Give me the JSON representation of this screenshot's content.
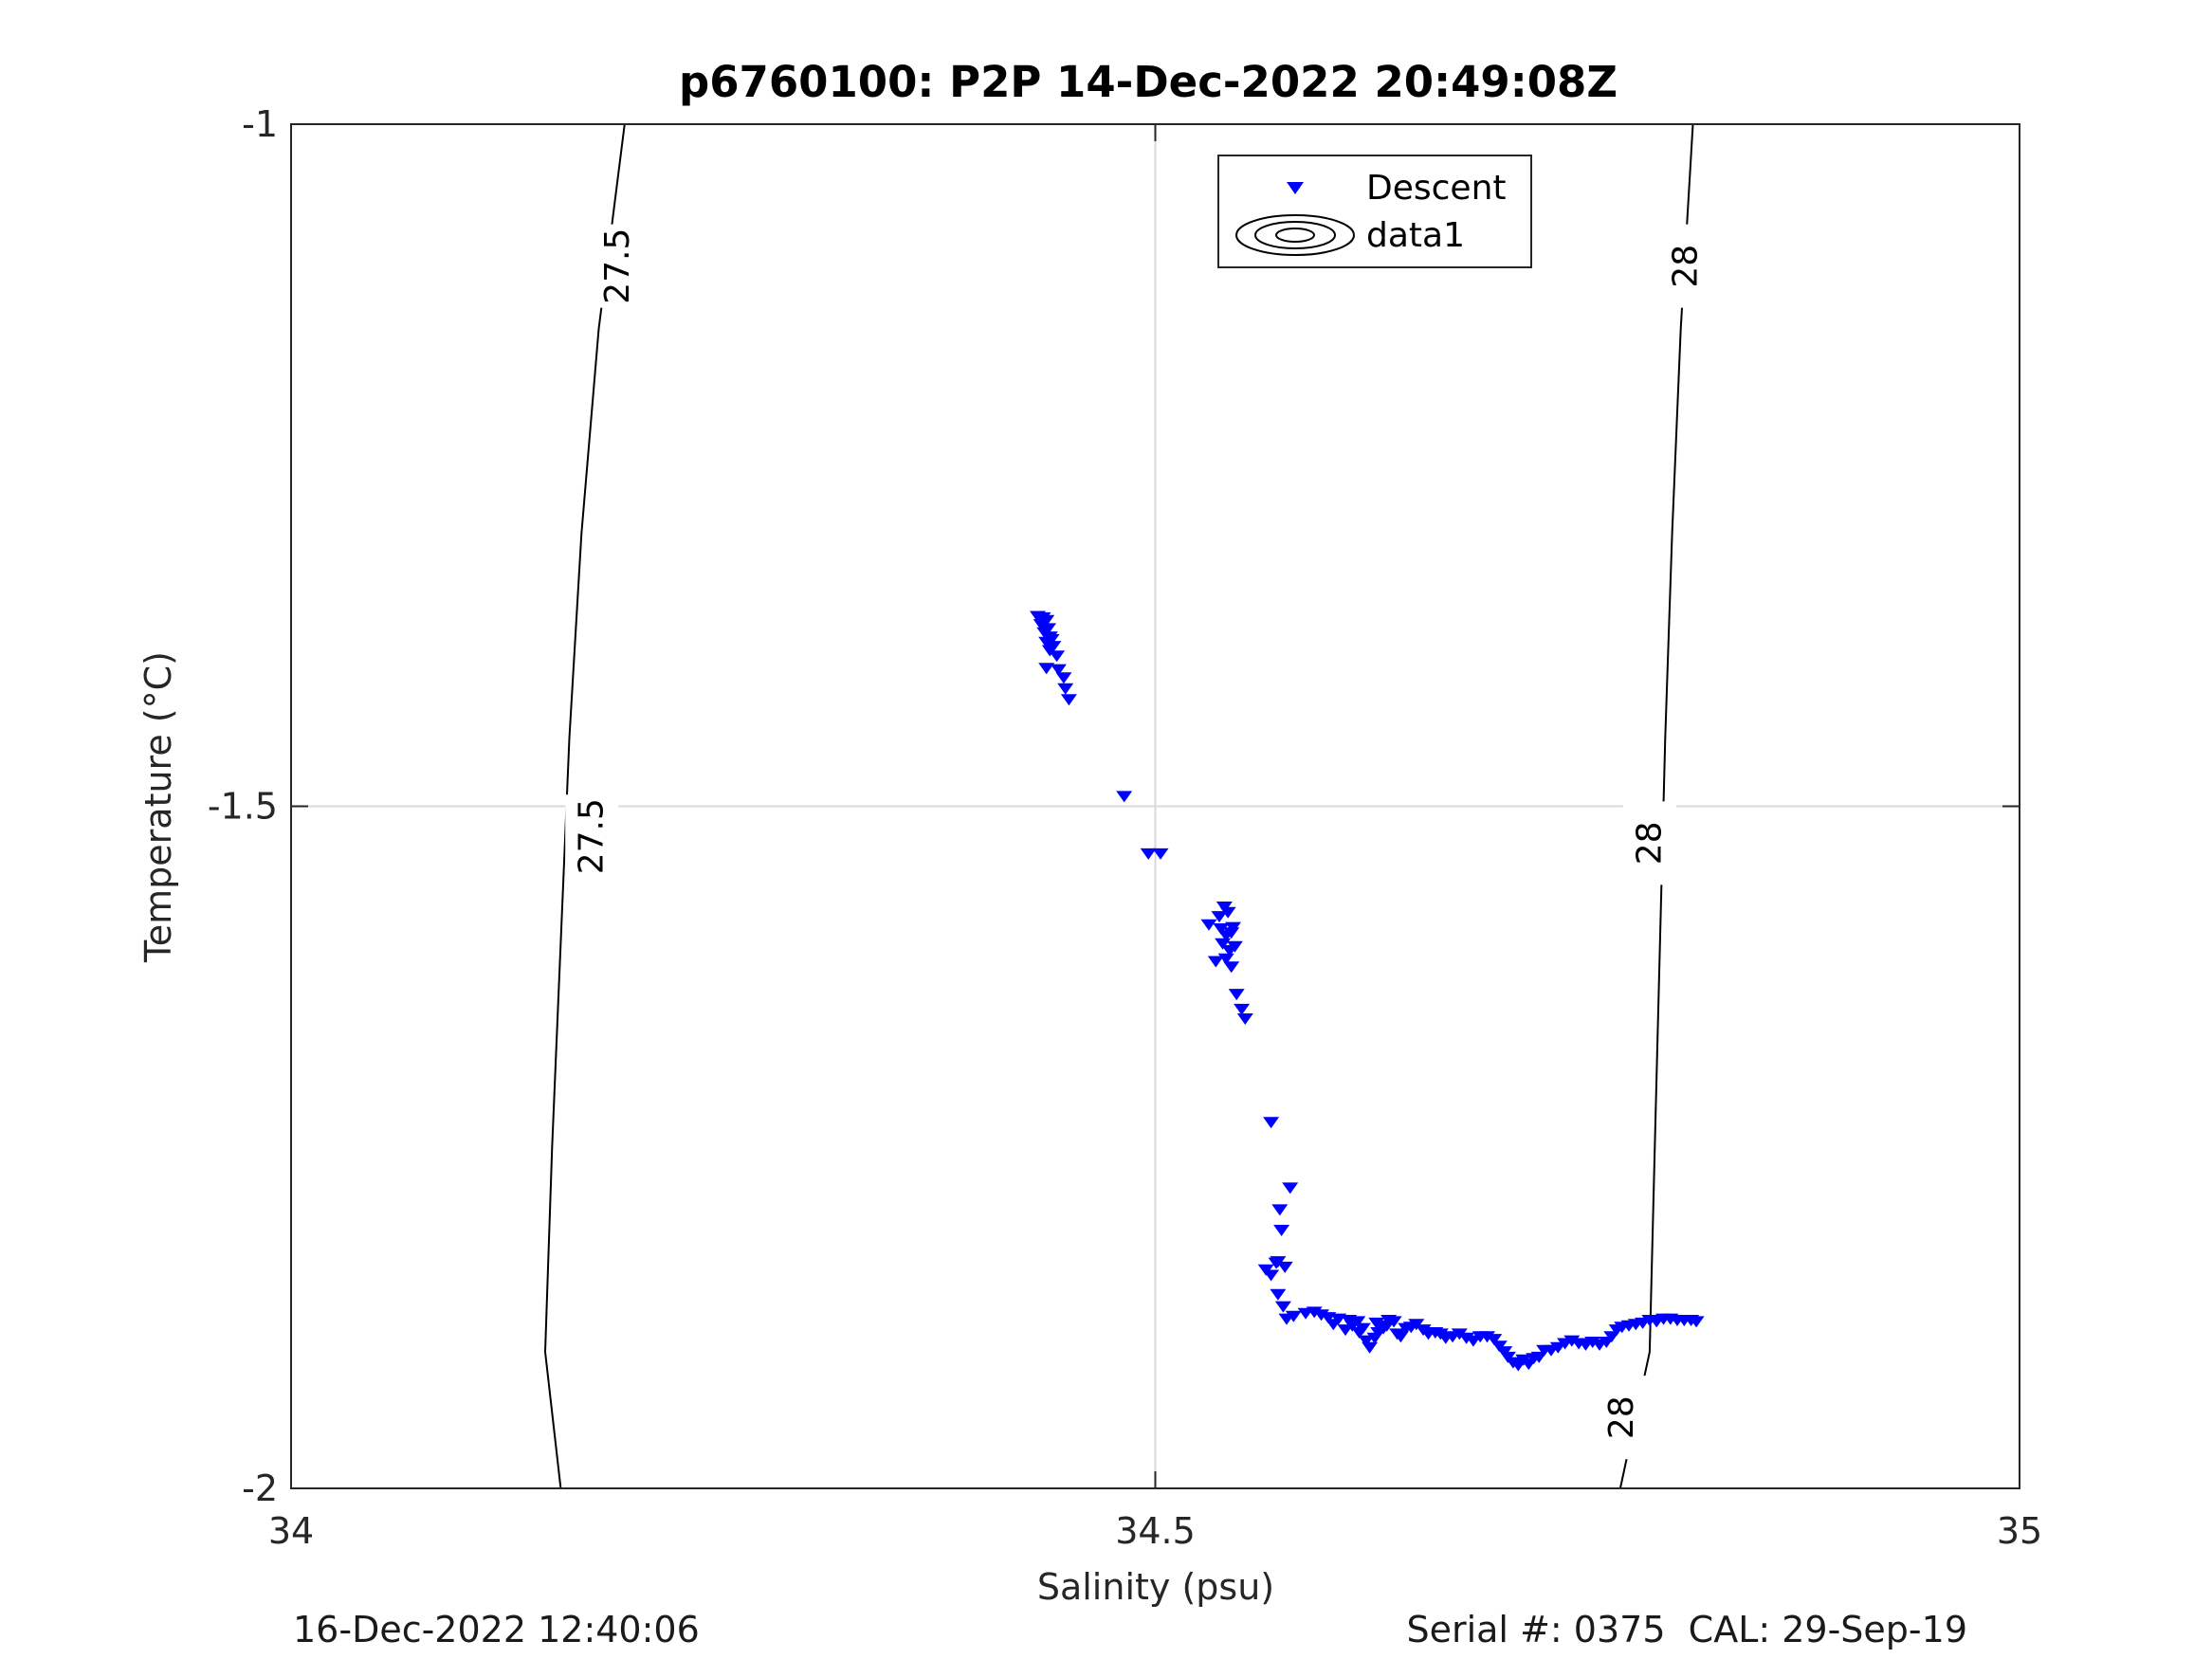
{
  "footer": {
    "timestamp": "16-Dec-2022 12:40:06",
    "serial_cal": "Serial #: 0375  CAL: 29-Sep-19"
  },
  "chart_data": {
    "type": "scatter",
    "title": "p6760100: P2P 14-Dec-2022 20:49:08Z",
    "xlabel": "Salinity (psu)",
    "ylabel": "Temperature (°C)",
    "xlim": [
      34,
      35
    ],
    "ylim": [
      -2,
      -1
    ],
    "xticks": [
      34,
      34.5,
      35
    ],
    "xtick_labels": [
      "34",
      "34.5",
      "35"
    ],
    "yticks": [
      -2,
      -1.5,
      -1
    ],
    "ytick_labels": [
      "-2",
      "-1.5",
      "-1"
    ],
    "grid": true,
    "legend": {
      "placement": "top-center",
      "entries": [
        "Descent",
        "data1"
      ]
    },
    "colors": {
      "descent": "#0000ff",
      "contour": "#000000",
      "grid": "#d9d9d9",
      "axis": "#262626"
    },
    "series": [
      {
        "name": "Descent",
        "marker": "down-triangle",
        "points": [
          [
            34.432,
            -1.361
          ],
          [
            34.435,
            -1.362
          ],
          [
            34.437,
            -1.364
          ],
          [
            34.434,
            -1.367
          ],
          [
            34.438,
            -1.37
          ],
          [
            34.436,
            -1.373
          ],
          [
            34.439,
            -1.376
          ],
          [
            34.437,
            -1.38
          ],
          [
            34.44,
            -1.378
          ],
          [
            34.441,
            -1.383
          ],
          [
            34.439,
            -1.386
          ],
          [
            34.443,
            -1.39
          ],
          [
            34.444,
            -1.4
          ],
          [
            34.437,
            -1.399
          ],
          [
            34.447,
            -1.406
          ],
          [
            34.448,
            -1.414
          ],
          [
            34.45,
            -1.422
          ],
          [
            34.482,
            -1.493
          ],
          [
            34.496,
            -1.535
          ],
          [
            34.503,
            -1.535
          ],
          [
            34.531,
            -1.587
          ],
          [
            34.537,
            -1.581
          ],
          [
            34.54,
            -1.574
          ],
          [
            34.542,
            -1.578
          ],
          [
            34.538,
            -1.59
          ],
          [
            34.541,
            -1.595
          ],
          [
            34.544,
            -1.593
          ],
          [
            34.545,
            -1.589
          ],
          [
            34.539,
            -1.601
          ],
          [
            34.543,
            -1.606
          ],
          [
            34.546,
            -1.603
          ],
          [
            34.535,
            -1.614
          ],
          [
            34.541,
            -1.612
          ],
          [
            34.544,
            -1.618
          ],
          [
            34.547,
            -1.638
          ],
          [
            34.55,
            -1.649
          ],
          [
            34.552,
            -1.656
          ],
          [
            34.567,
            -1.732
          ],
          [
            34.578,
            -1.78
          ],
          [
            34.572,
            -1.796
          ],
          [
            34.573,
            -1.811
          ],
          [
            34.571,
            -1.834
          ],
          [
            34.564,
            -1.84
          ],
          [
            34.567,
            -1.844
          ],
          [
            34.57,
            -1.835
          ],
          [
            34.575,
            -1.838
          ],
          [
            34.571,
            -1.858
          ],
          [
            34.574,
            -1.867
          ],
          [
            34.576,
            -1.876
          ],
          [
            34.58,
            -1.874
          ],
          [
            34.587,
            -1.872
          ],
          [
            34.592,
            -1.871
          ],
          [
            34.596,
            -1.873
          ],
          [
            34.6,
            -1.875
          ],
          [
            34.606,
            -1.876
          ],
          [
            34.612,
            -1.877
          ],
          [
            34.617,
            -1.878
          ],
          [
            34.62,
            -1.883
          ],
          [
            34.622,
            -1.892
          ],
          [
            34.624,
            -1.897
          ],
          [
            34.627,
            -1.89
          ],
          [
            34.629,
            -1.886
          ],
          [
            34.632,
            -1.883
          ],
          [
            34.635,
            -1.877
          ],
          [
            34.638,
            -1.878
          ],
          [
            34.64,
            -1.887
          ],
          [
            34.642,
            -1.889
          ],
          [
            34.645,
            -1.883
          ],
          [
            34.648,
            -1.882
          ],
          [
            34.651,
            -1.88
          ],
          [
            34.655,
            -1.884
          ],
          [
            34.658,
            -1.887
          ],
          [
            34.662,
            -1.886
          ],
          [
            34.665,
            -1.887
          ],
          [
            34.668,
            -1.89
          ],
          [
            34.672,
            -1.889
          ],
          [
            34.676,
            -1.887
          ],
          [
            34.68,
            -1.89
          ],
          [
            34.684,
            -1.892
          ],
          [
            34.688,
            -1.889
          ],
          [
            34.692,
            -1.889
          ],
          [
            34.696,
            -1.891
          ],
          [
            34.699,
            -1.896
          ],
          [
            34.702,
            -1.9
          ],
          [
            34.704,
            -1.904
          ],
          [
            34.707,
            -1.908
          ],
          [
            34.71,
            -1.91
          ],
          [
            34.713,
            -1.906
          ],
          [
            34.716,
            -1.909
          ],
          [
            34.719,
            -1.905
          ],
          [
            34.722,
            -1.904
          ],
          [
            34.725,
            -1.899
          ],
          [
            34.729,
            -1.899
          ],
          [
            34.733,
            -1.897
          ],
          [
            34.737,
            -1.894
          ],
          [
            34.741,
            -1.892
          ],
          [
            34.745,
            -1.894
          ],
          [
            34.749,
            -1.895
          ],
          [
            34.753,
            -1.893
          ],
          [
            34.757,
            -1.895
          ],
          [
            34.761,
            -1.893
          ],
          [
            34.764,
            -1.889
          ],
          [
            34.767,
            -1.884
          ],
          [
            34.77,
            -1.882
          ],
          [
            34.774,
            -1.881
          ],
          [
            34.778,
            -1.88
          ],
          [
            34.782,
            -1.879
          ],
          [
            34.786,
            -1.877
          ],
          [
            34.79,
            -1.878
          ],
          [
            34.794,
            -1.876
          ],
          [
            34.798,
            -1.876
          ],
          [
            34.802,
            -1.877
          ],
          [
            34.806,
            -1.877
          ],
          [
            34.81,
            -1.877
          ],
          [
            34.813,
            -1.878
          ],
          [
            34.603,
            -1.88
          ],
          [
            34.61,
            -1.884
          ],
          [
            34.614,
            -1.881
          ],
          [
            34.628,
            -1.879
          ],
          [
            34.634,
            -1.881
          ],
          [
            34.618,
            -1.886
          ]
        ]
      },
      {
        "name": "data1",
        "type": "contour",
        "levels": [
          {
            "value": 27.5,
            "line": [
              [
                34.193,
                -1.0
              ],
              [
                34.178,
                -1.15
              ],
              [
                34.168,
                -1.3
              ],
              [
                34.161,
                -1.45
              ],
              [
                34.156,
                -1.6
              ],
              [
                34.151,
                -1.75
              ],
              [
                34.147,
                -1.9
              ],
              [
                34.156,
                -2.0
              ]
            ],
            "labels": [
              [
                34.189,
                -1.104
              ],
              [
                34.174,
                -1.522
              ]
            ]
          },
          {
            "value": 28,
            "line": [
              [
                34.811,
                -1.0
              ],
              [
                34.804,
                -1.15
              ],
              [
                34.799,
                -1.3
              ],
              [
                34.795,
                -1.45
              ],
              [
                34.792,
                -1.6
              ],
              [
                34.789,
                -1.75
              ],
              [
                34.786,
                -1.9
              ],
              [
                34.769,
                -2.0
              ]
            ],
            "labels": [
              [
                34.807,
                -1.104
              ],
              [
                34.786,
                -1.527
              ],
              [
                34.77,
                -1.948
              ]
            ]
          }
        ]
      }
    ]
  }
}
